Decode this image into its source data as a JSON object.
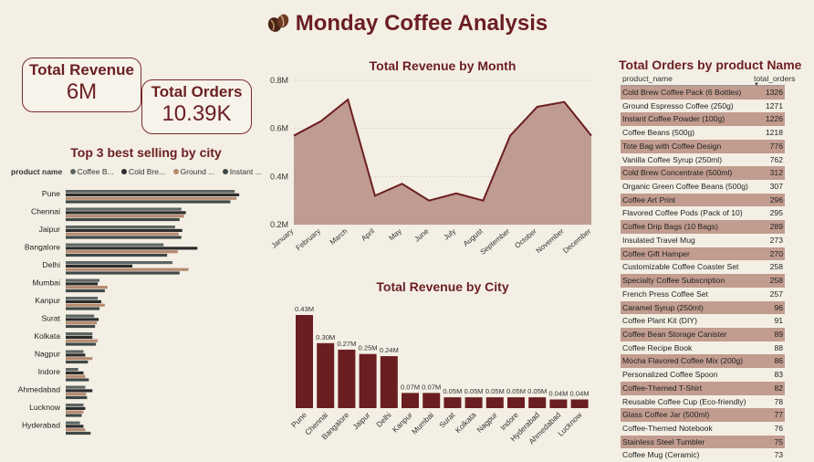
{
  "dashboard": {
    "title": "Monday Coffee Analysis",
    "logo_icon": "coffee-beans-icon"
  },
  "kpi": {
    "revenue_label": "Total Revenue",
    "revenue_value": "6M",
    "orders_label": "Total Orders",
    "orders_value": "10.39K"
  },
  "colors": {
    "accent": "#6b1e22",
    "area_fill": "#bf9b92",
    "bar": "#6b1e22",
    "coffee_beans": "#5d6664",
    "cold_brew": "#2b2d2c",
    "ground_espresso": "#b58a70",
    "instant": "#3f4847",
    "table_stripe": "#c19c8f",
    "background": "#f4efe4"
  },
  "chart_data": [
    {
      "type": "bar",
      "orientation": "horizontal",
      "title": "Top 3 best selling by city",
      "legend_title": "product name",
      "legend_position": "top",
      "categories": [
        "Pune",
        "Chennai",
        "Jaipur",
        "Bangalore",
        "Delhi",
        "Mumbai",
        "Kanpur",
        "Surat",
        "Kolkata",
        "Nagpur",
        "Indore",
        "Ahmedabad",
        "Lucknow",
        "Hyderabad"
      ],
      "series": [
        {
          "name": "Coffee B...",
          "values": [
            190,
            130,
            123,
            110,
            120,
            38,
            36,
            32,
            30,
            20,
            14,
            22,
            20,
            16
          ]
        },
        {
          "name": "Cold Bre...",
          "values": [
            195,
            135,
            131,
            148,
            75,
            36,
            40,
            37,
            30,
            22,
            20,
            30,
            22,
            20
          ]
        },
        {
          "name": "Ground ...",
          "values": [
            192,
            133,
            127,
            126,
            138,
            47,
            44,
            35,
            36,
            30,
            22,
            23,
            20,
            22
          ]
        },
        {
          "name": "Instant ...",
          "values": [
            185,
            128,
            130,
            114,
            128,
            44,
            38,
            33,
            34,
            25,
            26,
            24,
            18,
            28
          ]
        }
      ]
    },
    {
      "type": "area",
      "title": "Total Revenue by Month",
      "categories": [
        "January",
        "February",
        "March",
        "April",
        "May",
        "June",
        "July",
        "August",
        "September",
        "October",
        "November",
        "December"
      ],
      "values": [
        0.57,
        0.63,
        0.72,
        0.32,
        0.37,
        0.3,
        0.33,
        0.3,
        0.57,
        0.69,
        0.71,
        0.57
      ],
      "ylim": [
        0.2,
        0.8
      ],
      "yticks": [
        "0.2M",
        "0.4M",
        "0.6M",
        "0.8M"
      ],
      "grid": true
    },
    {
      "type": "bar",
      "title": "Total Revenue by City",
      "categories": [
        "Pune",
        "Chennai",
        "Bangalore",
        "Jaipur",
        "Delhi",
        "Kanpur",
        "Mumbai",
        "Surat",
        "Kolkata",
        "Nagpur",
        "Indore",
        "Hyderabad",
        "Ahmedabad",
        "Lucknow"
      ],
      "values": [
        0.43,
        0.3,
        0.27,
        0.25,
        0.24,
        0.07,
        0.07,
        0.05,
        0.05,
        0.05,
        0.05,
        0.05,
        0.04,
        0.04
      ],
      "labels": [
        "0.43M",
        "0.30M",
        "0.27M",
        "0.25M",
        "0.24M",
        "0.07M",
        "0.07M",
        "0.05M",
        "0.05M",
        "0.05M",
        "0.05M",
        "0.05M",
        "0.04M",
        "0.04M"
      ]
    },
    {
      "type": "table",
      "title": "Total Orders by product Name",
      "columns": [
        "product_name",
        "total_orders"
      ],
      "rows": [
        [
          "Cold Brew Coffee Pack (6 Bottles)",
          "1326"
        ],
        [
          "Ground Espresso Coffee (250g)",
          "1271"
        ],
        [
          "Instant Coffee Powder (100g)",
          "1226"
        ],
        [
          "Coffee Beans (500g)",
          "1218"
        ],
        [
          "Tote Bag with Coffee Design",
          "776"
        ],
        [
          "Vanilla Coffee Syrup (250ml)",
          "762"
        ],
        [
          "Cold Brew Concentrate (500ml)",
          "312"
        ],
        [
          "Organic Green Coffee Beans (500g)",
          "307"
        ],
        [
          "Coffee Art Print",
          "296"
        ],
        [
          "Flavored Coffee Pods (Pack of 10)",
          "295"
        ],
        [
          "Coffee Drip Bags (10 Bags)",
          "289"
        ],
        [
          "Insulated Travel Mug",
          "273"
        ],
        [
          "Coffee Gift Hamper",
          "270"
        ],
        [
          "Customizable Coffee Coaster Set",
          "258"
        ],
        [
          "Specialty Coffee Subscription",
          "258"
        ],
        [
          "French Press Coffee Set",
          "257"
        ],
        [
          "Caramel Syrup (250ml)",
          "96"
        ],
        [
          "Coffee Plant Kit (DIY)",
          "91"
        ],
        [
          "Coffee Bean Storage Canister",
          "89"
        ],
        [
          "Coffee Recipe Book",
          "88"
        ],
        [
          "Mocha Flavored Coffee Mix (200g)",
          "86"
        ],
        [
          "Personalized Coffee Spoon",
          "83"
        ],
        [
          "Coffee-Themed T-Shirt",
          "82"
        ],
        [
          "Reusable Coffee Cup (Eco-friendly)",
          "78"
        ],
        [
          "Glass Coffee Jar (500ml)",
          "77"
        ],
        [
          "Coffee-Themed Notebook",
          "76"
        ],
        [
          "Stainless Steel Tumbler",
          "75"
        ],
        [
          "Coffee Mug (Ceramic)",
          "73"
        ]
      ]
    }
  ]
}
